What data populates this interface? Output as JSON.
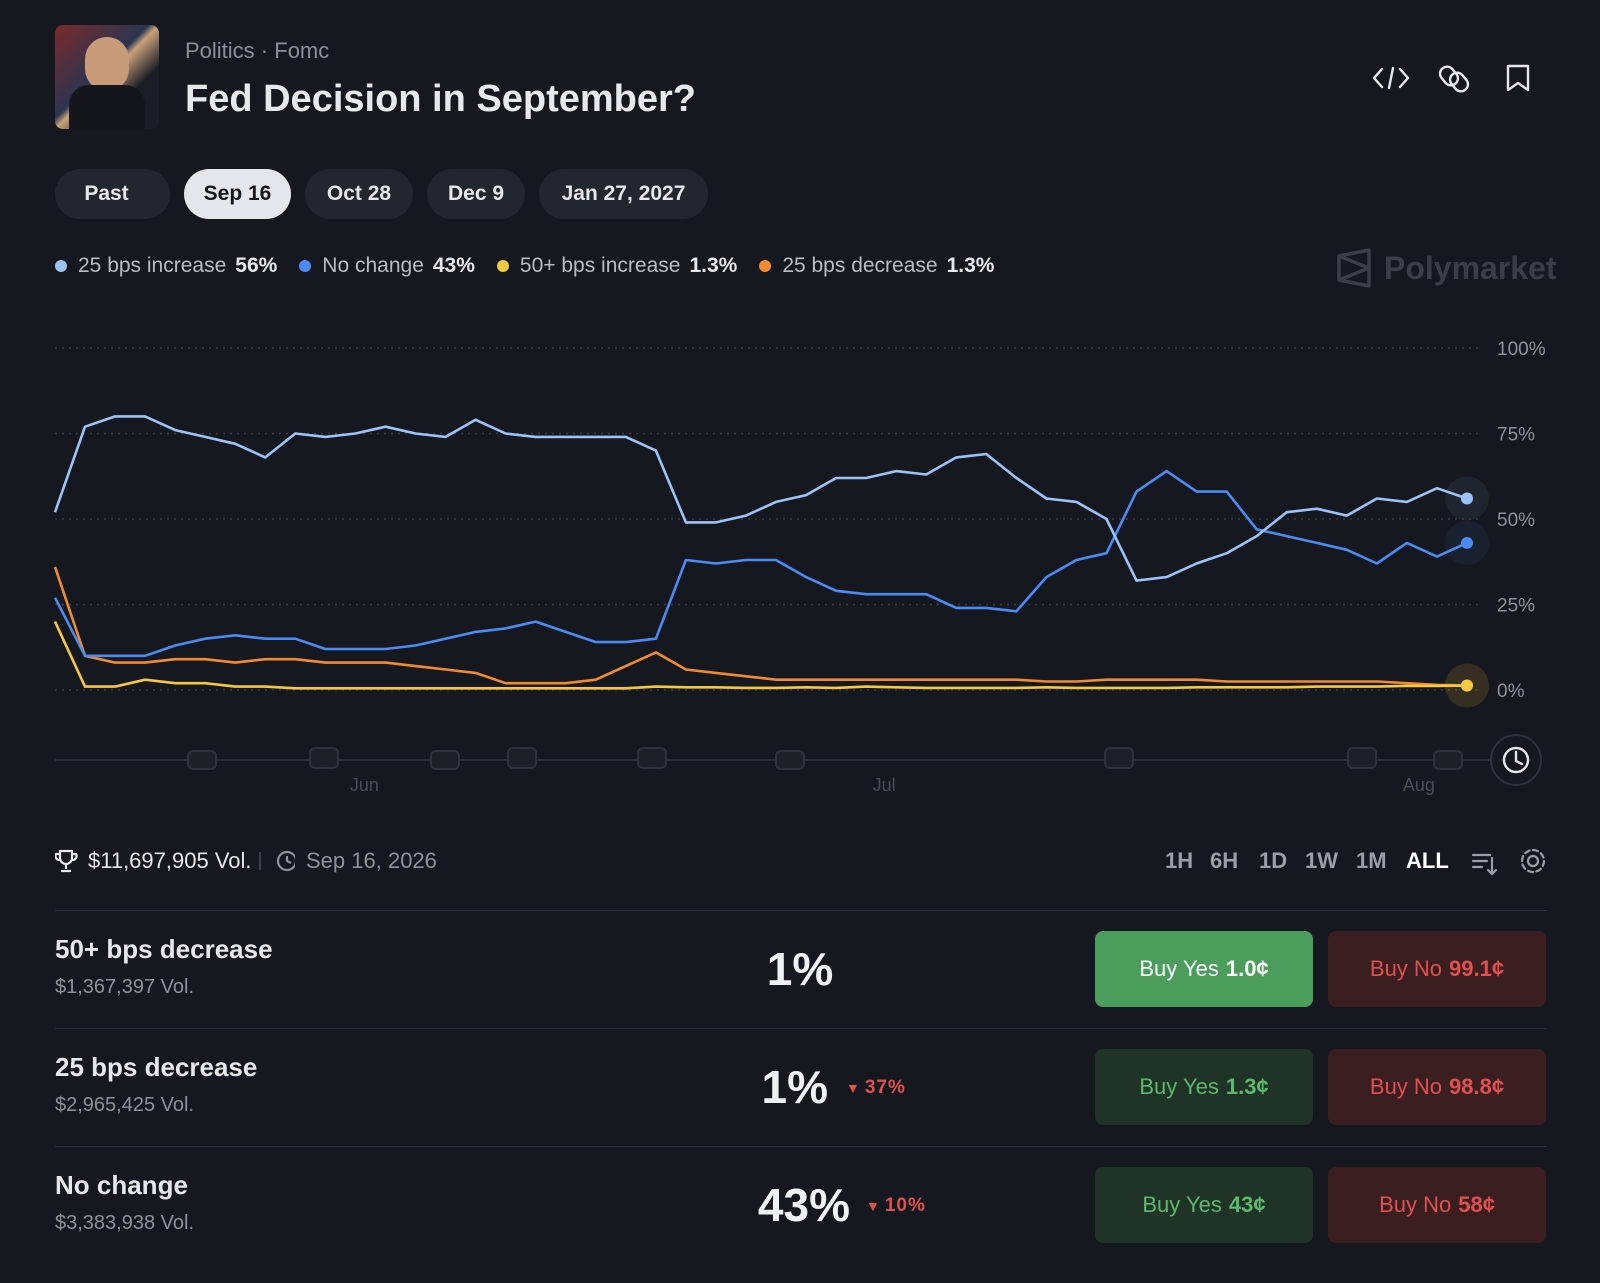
{
  "header": {
    "breadcrumb": [
      "Politics",
      "Fomc"
    ],
    "title": "Fed Decision in September?"
  },
  "tabs": [
    "Past",
    "Sep 16",
    "Oct 28",
    "Dec 9",
    "Jan 27, 2027"
  ],
  "watermark": "Polymarket",
  "chart_data": {
    "type": "line",
    "series": [
      {
        "name": "25 bps increase",
        "legend_label": "56%",
        "color": "#9cc3f8",
        "values": [
          52,
          77,
          80,
          80,
          76,
          74,
          72,
          68,
          75,
          74,
          75,
          77,
          75,
          74,
          79,
          75,
          74,
          74,
          74,
          74,
          70,
          49,
          49,
          51,
          55,
          57,
          62,
          62,
          64,
          63,
          68,
          69,
          62,
          56,
          55,
          50,
          32,
          33,
          37,
          40,
          45,
          52,
          53,
          51,
          56,
          55,
          59,
          56
        ]
      },
      {
        "name": "No change",
        "legend_label": "43%",
        "color": "#4b8bf5",
        "values": [
          27,
          10,
          10,
          10,
          13,
          15,
          16,
          15,
          15,
          12,
          12,
          12,
          13,
          15,
          17,
          18,
          20,
          17,
          14,
          14,
          15,
          38,
          37,
          38,
          38,
          33,
          29,
          28,
          28,
          28,
          24,
          24,
          23,
          33,
          38,
          40,
          58,
          64,
          58,
          58,
          47,
          45,
          43,
          41,
          37,
          43,
          39,
          43
        ]
      },
      {
        "name": "50+ bps increase",
        "legend_label": "1.3%",
        "color": "#f5c842",
        "values": [
          20,
          1,
          1,
          3,
          2,
          2,
          1,
          1,
          0.5,
          0.5,
          0.5,
          0.5,
          0.5,
          0.5,
          0.5,
          0.5,
          0.5,
          0.5,
          0.5,
          0.5,
          1,
          0.8,
          0.8,
          0.6,
          0.6,
          0.8,
          0.6,
          1,
          0.8,
          0.6,
          0.6,
          0.6,
          0.6,
          0.8,
          0.6,
          0.6,
          0.6,
          0.6,
          0.8,
          0.8,
          0.8,
          0.8,
          1,
          1,
          1,
          1.2,
          1.2,
          1.3
        ]
      },
      {
        "name": "25 bps decrease",
        "legend_label": "1.3%",
        "color": "#f28b30",
        "values": [
          36,
          10,
          8,
          8,
          9,
          9,
          8,
          9,
          9,
          8,
          8,
          8,
          7,
          6,
          5,
          2,
          2,
          2,
          3,
          7,
          11,
          6,
          5,
          4,
          3,
          3,
          3,
          3,
          3,
          3,
          3,
          3,
          3,
          2.5,
          2.5,
          3,
          3,
          3,
          3,
          2.5,
          2.5,
          2.5,
          2.5,
          2.5,
          2.5,
          2,
          1.5,
          1.3
        ]
      }
    ],
    "xlim": [
      0,
      47
    ],
    "xticks": [
      {
        "value": 10.3,
        "label": "Jun"
      },
      {
        "value": 27.6,
        "label": "Jul"
      },
      {
        "value": 45.4,
        "label": "Aug"
      }
    ],
    "ylim": [
      0,
      100
    ],
    "yticks": [
      {
        "value": 0,
        "label": "0%"
      },
      {
        "value": 25,
        "label": "25%"
      },
      {
        "value": 50,
        "label": "50%"
      },
      {
        "value": 75,
        "label": "75%"
      },
      {
        "value": 100,
        "label": "100%"
      }
    ],
    "grid": true
  },
  "stats": {
    "volume": "$11,697,905 Vol.",
    "end_date": "Sep 16, 2026"
  },
  "ranges": [
    "1H",
    "6H",
    "1D",
    "1W",
    "1M",
    "ALL"
  ],
  "markets": [
    {
      "name": "50+ bps decrease",
      "volume": "$1,367,397 Vol.",
      "chance": "1%",
      "buy_yes": {
        "label": "Buy Yes",
        "price": "1.0¢"
      },
      "buy_no": {
        "label": "Buy No",
        "price": "99.1¢"
      }
    },
    {
      "name": "25 bps decrease",
      "volume": "$2,965,425 Vol.",
      "chance": "1%",
      "change": "37%",
      "buy_yes": {
        "label": "Buy Yes",
        "price": "1.3¢"
      },
      "buy_no": {
        "label": "Buy No",
        "price": "98.8¢"
      }
    },
    {
      "name": "No change",
      "volume": "$3,383,938 Vol.",
      "chance": "43%",
      "change": "10%",
      "buy_yes": {
        "label": "Buy Yes",
        "price": "43¢"
      },
      "buy_no": {
        "label": "Buy No",
        "price": "58¢"
      }
    }
  ]
}
